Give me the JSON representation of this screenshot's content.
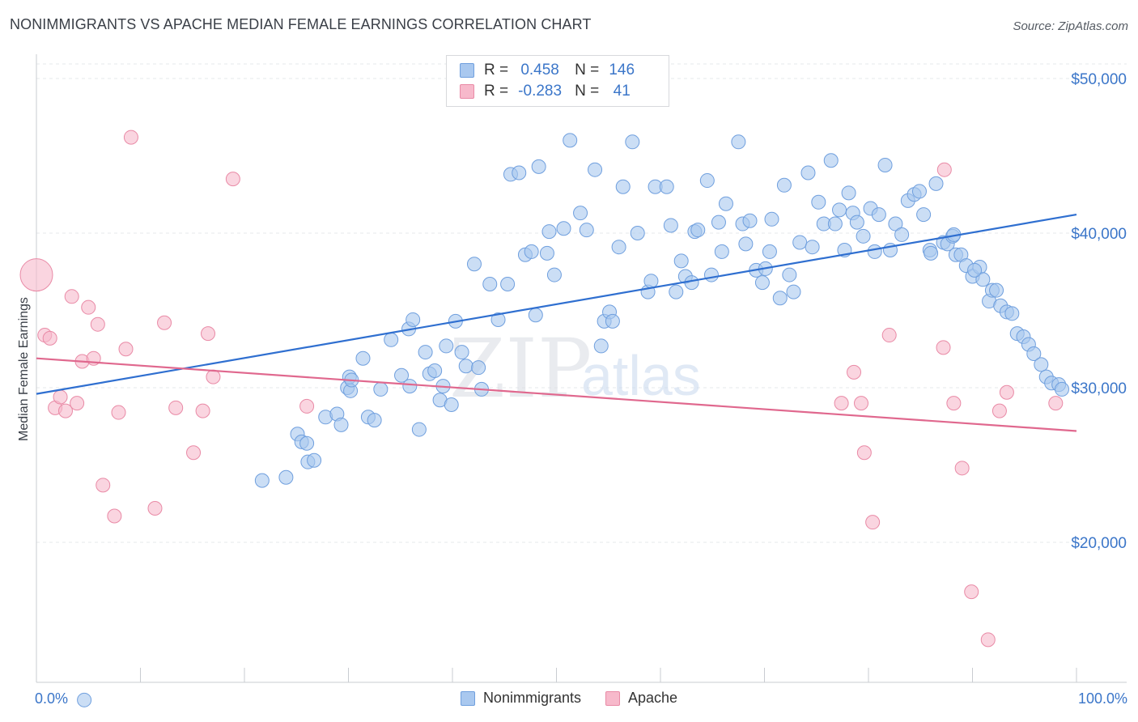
{
  "title": "NONIMMIGRANTS VS APACHE MEDIAN FEMALE EARNINGS CORRELATION CHART",
  "source": "Source: ZipAtlas.com",
  "watermark": {
    "part1": "ZIP",
    "part2": "atlas"
  },
  "stats": [
    {
      "r_label": "R =",
      "r_value": "0.458",
      "n_label": "N =",
      "n_value": "146",
      "color": "#a9c8ef",
      "border": "#6f9fde"
    },
    {
      "r_label": "R =",
      "r_value": "-0.283",
      "n_label": "N =",
      "n_value": "41",
      "color": "#f7b9cb",
      "border": "#e98aa6"
    }
  ],
  "legend": [
    {
      "label": "Nonimmigrants",
      "color": "#a9c8ef",
      "border": "#6f9fde"
    },
    {
      "label": "Apache",
      "color": "#f7b9cb",
      "border": "#e98aa6"
    }
  ],
  "chart_data": {
    "type": "scatter",
    "title": "NONIMMIGRANTS VS APACHE MEDIAN FEMALE EARNINGS CORRELATION CHART",
    "xlabel": "",
    "ylabel": "Median Female Earnings",
    "xlim": [
      0,
      100
    ],
    "ylim": [
      9000,
      51000
    ],
    "x_tick_labels": [
      "0.0%",
      "100.0%"
    ],
    "y_ticks": [
      {
        "value": 20000,
        "label": "$20,000"
      },
      {
        "value": 30000,
        "label": "$30,000"
      },
      {
        "value": 40000,
        "label": "$40,000"
      },
      {
        "value": 50000,
        "label": "$50,000"
      }
    ],
    "grid": true,
    "legend_position": "bottom-center",
    "series": [
      {
        "name": "Nonimmigrants",
        "color": "#a9c8ef",
        "stroke": "#6f9fde",
        "line_color": "#2f6fd0",
        "trend": {
          "x": [
            0,
            100
          ],
          "y": [
            29600,
            41200
          ]
        },
        "points": [
          [
            4.6,
            9800
          ],
          [
            21.7,
            24000
          ],
          [
            24.0,
            24200
          ],
          [
            25.1,
            27000
          ],
          [
            25.5,
            26500
          ],
          [
            26.0,
            26400
          ],
          [
            26.1,
            25200
          ],
          [
            26.7,
            25300
          ],
          [
            27.8,
            28100
          ],
          [
            28.9,
            28300
          ],
          [
            29.3,
            27600
          ],
          [
            29.9,
            30000
          ],
          [
            30.1,
            30700
          ],
          [
            30.2,
            29800
          ],
          [
            30.3,
            30500
          ],
          [
            31.4,
            31900
          ],
          [
            31.9,
            28100
          ],
          [
            32.5,
            27900
          ],
          [
            33.1,
            29900
          ],
          [
            34.1,
            33100
          ],
          [
            35.1,
            30800
          ],
          [
            35.9,
            30100
          ],
          [
            35.8,
            33800
          ],
          [
            36.2,
            34400
          ],
          [
            36.8,
            27300
          ],
          [
            37.4,
            32300
          ],
          [
            37.8,
            30900
          ],
          [
            38.3,
            31100
          ],
          [
            38.8,
            29200
          ],
          [
            39.1,
            30100
          ],
          [
            39.4,
            32700
          ],
          [
            39.9,
            28900
          ],
          [
            40.3,
            34300
          ],
          [
            40.9,
            32300
          ],
          [
            41.3,
            31400
          ],
          [
            42.1,
            38000
          ],
          [
            42.5,
            31300
          ],
          [
            42.8,
            29900
          ],
          [
            43.6,
            36700
          ],
          [
            44.4,
            34400
          ],
          [
            45.3,
            36700
          ],
          [
            45.6,
            43800
          ],
          [
            46.4,
            43900
          ],
          [
            47.0,
            38600
          ],
          [
            47.6,
            38800
          ],
          [
            48.0,
            34700
          ],
          [
            48.3,
            44300
          ],
          [
            49.1,
            38700
          ],
          [
            49.3,
            40100
          ],
          [
            49.8,
            37300
          ],
          [
            50.7,
            40300
          ],
          [
            51.3,
            46000
          ],
          [
            51.9,
            48800
          ],
          [
            52.3,
            41300
          ],
          [
            52.9,
            40200
          ],
          [
            53.7,
            44100
          ],
          [
            54.3,
            32700
          ],
          [
            54.6,
            34300
          ],
          [
            55.1,
            34900
          ],
          [
            55.4,
            34300
          ],
          [
            56.0,
            39100
          ],
          [
            56.4,
            43000
          ],
          [
            57.3,
            45900
          ],
          [
            57.8,
            40000
          ],
          [
            58.8,
            36200
          ],
          [
            59.1,
            36900
          ],
          [
            59.5,
            43000
          ],
          [
            60.6,
            43000
          ],
          [
            61.0,
            40500
          ],
          [
            61.5,
            36200
          ],
          [
            62.0,
            38200
          ],
          [
            62.4,
            37200
          ],
          [
            63.0,
            36800
          ],
          [
            63.3,
            40100
          ],
          [
            63.6,
            40200
          ],
          [
            64.5,
            43400
          ],
          [
            64.9,
            37300
          ],
          [
            65.6,
            40700
          ],
          [
            65.9,
            38800
          ],
          [
            66.3,
            41900
          ],
          [
            67.5,
            45900
          ],
          [
            67.9,
            40600
          ],
          [
            68.2,
            39300
          ],
          [
            68.6,
            40800
          ],
          [
            69.2,
            37600
          ],
          [
            69.8,
            36800
          ],
          [
            70.1,
            37700
          ],
          [
            70.5,
            38800
          ],
          [
            70.7,
            40900
          ],
          [
            71.5,
            35800
          ],
          [
            71.9,
            43100
          ],
          [
            72.4,
            37300
          ],
          [
            72.8,
            36200
          ],
          [
            73.4,
            39400
          ],
          [
            74.2,
            43900
          ],
          [
            74.6,
            39100
          ],
          [
            75.2,
            42000
          ],
          [
            75.7,
            40600
          ],
          [
            76.4,
            44700
          ],
          [
            76.8,
            40600
          ],
          [
            77.2,
            41500
          ],
          [
            77.7,
            38900
          ],
          [
            78.1,
            42600
          ],
          [
            78.5,
            41300
          ],
          [
            78.9,
            40700
          ],
          [
            79.5,
            39800
          ],
          [
            80.2,
            41600
          ],
          [
            80.6,
            38800
          ],
          [
            81.0,
            41200
          ],
          [
            81.6,
            44400
          ],
          [
            82.1,
            38900
          ],
          [
            82.6,
            40600
          ],
          [
            83.2,
            39900
          ],
          [
            83.8,
            42100
          ],
          [
            84.4,
            42500
          ],
          [
            84.9,
            42700
          ],
          [
            85.3,
            41200
          ],
          [
            85.9,
            38900
          ],
          [
            86.5,
            43200
          ],
          [
            87.2,
            39400
          ],
          [
            87.6,
            39300
          ],
          [
            88.1,
            39800
          ],
          [
            88.4,
            38600
          ],
          [
            88.9,
            38600
          ],
          [
            89.4,
            37900
          ],
          [
            90.0,
            37200
          ],
          [
            90.7,
            37800
          ],
          [
            91.0,
            37000
          ],
          [
            91.6,
            35600
          ],
          [
            91.9,
            36300
          ],
          [
            92.3,
            36300
          ],
          [
            92.7,
            35300
          ],
          [
            93.3,
            34900
          ],
          [
            93.8,
            34800
          ],
          [
            94.3,
            33500
          ],
          [
            94.9,
            33300
          ],
          [
            95.4,
            32800
          ],
          [
            95.9,
            32200
          ],
          [
            96.6,
            31500
          ],
          [
            97.1,
            30700
          ],
          [
            97.6,
            30300
          ],
          [
            98.3,
            30200
          ],
          [
            98.6,
            29900
          ],
          [
            90.2,
            37600
          ],
          [
            88.2,
            39900
          ],
          [
            86.0,
            38700
          ]
        ]
      },
      {
        "name": "Apache",
        "color": "#f7b9cb",
        "stroke": "#e98aa6",
        "line_color": "#e0688e",
        "trend": {
          "x": [
            0,
            100
          ],
          "y": [
            31900,
            27200
          ]
        },
        "points": [
          [
            0.0,
            37300,
            "large"
          ],
          [
            0.8,
            33400
          ],
          [
            1.3,
            33200
          ],
          [
            1.8,
            28700
          ],
          [
            2.3,
            29400
          ],
          [
            2.8,
            28500
          ],
          [
            3.4,
            35900
          ],
          [
            3.9,
            29000
          ],
          [
            4.4,
            31700
          ],
          [
            5.0,
            35200
          ],
          [
            5.5,
            31900
          ],
          [
            5.9,
            34100
          ],
          [
            6.4,
            23700
          ],
          [
            7.5,
            21700
          ],
          [
            7.9,
            28400
          ],
          [
            8.6,
            32500
          ],
          [
            9.1,
            46200
          ],
          [
            11.4,
            22200
          ],
          [
            12.3,
            34200
          ],
          [
            13.4,
            28700
          ],
          [
            15.1,
            25800
          ],
          [
            16.0,
            28500
          ],
          [
            16.5,
            33500
          ],
          [
            17.0,
            30700
          ],
          [
            18.9,
            43500
          ],
          [
            26.0,
            28800
          ],
          [
            77.4,
            29000
          ],
          [
            78.6,
            31000
          ],
          [
            79.3,
            29000
          ],
          [
            79.6,
            25800
          ],
          [
            80.4,
            21300
          ],
          [
            82.0,
            33400
          ],
          [
            87.2,
            32600
          ],
          [
            87.3,
            44100
          ],
          [
            88.2,
            29000
          ],
          [
            89.0,
            24800
          ],
          [
            89.9,
            16800
          ],
          [
            91.5,
            13700
          ],
          [
            92.6,
            28500
          ],
          [
            93.3,
            29700
          ],
          [
            98.0,
            29000
          ]
        ]
      }
    ]
  }
}
